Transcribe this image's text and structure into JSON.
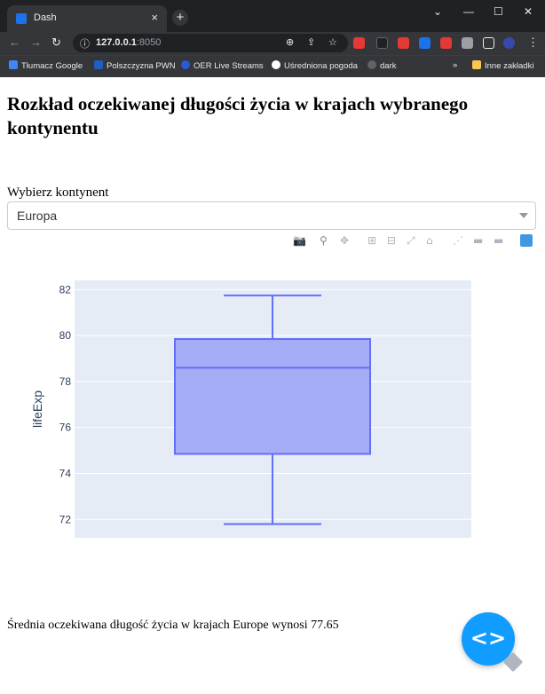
{
  "browser": {
    "tab_title": "Dash",
    "tab_close": "×",
    "new_tab": "+",
    "url_host": "127.0.0.1",
    "url_port": ":8050",
    "bookmarks": [
      {
        "label": "Tłumacz Google",
        "color": "#4285f4"
      },
      {
        "label": "Polszczyzna PWN",
        "color": "#1f5fbf"
      },
      {
        "label": "OER Live Streams",
        "color": "#2a5bd7"
      },
      {
        "label": "Uśredniona pogoda",
        "color": "#ffffff"
      },
      {
        "label": "dark",
        "color": "#5f6368"
      }
    ],
    "bookmarks_more": "»",
    "other_bookmarks": "Inne zakładki"
  },
  "page": {
    "title": "Rozkład oczekiwanej długości życia w krajach wybranego kontynentu",
    "dropdown_label": "Wybierz kontynent",
    "dropdown_value": "Europa",
    "footer_text": "Średnia oczekiwana długość życia w krajach Europe wynosi 77.65"
  },
  "modebar_icons": [
    "camera-icon",
    "zoom-icon",
    "pan-icon",
    "zoom-in-icon",
    "zoom-out-icon",
    "autoscale-icon",
    "reset-axes-icon",
    "spike-lines-icon",
    "hover-closest-icon",
    "hover-compare-icon",
    "plotly-logo-icon"
  ],
  "chart_data": {
    "type": "box",
    "ylabel": "lifeExp",
    "ylim": [
      71.2,
      82.4
    ],
    "yticks": [
      72,
      74,
      76,
      78,
      80,
      82
    ],
    "grid": true,
    "box": {
      "min": 71.8,
      "q1": 74.85,
      "median": 78.6,
      "q3": 79.85,
      "max": 81.75
    },
    "colors": {
      "fill": "#a6adf6",
      "line": "#636efa",
      "plot_bg": "#e5ecf6"
    }
  }
}
